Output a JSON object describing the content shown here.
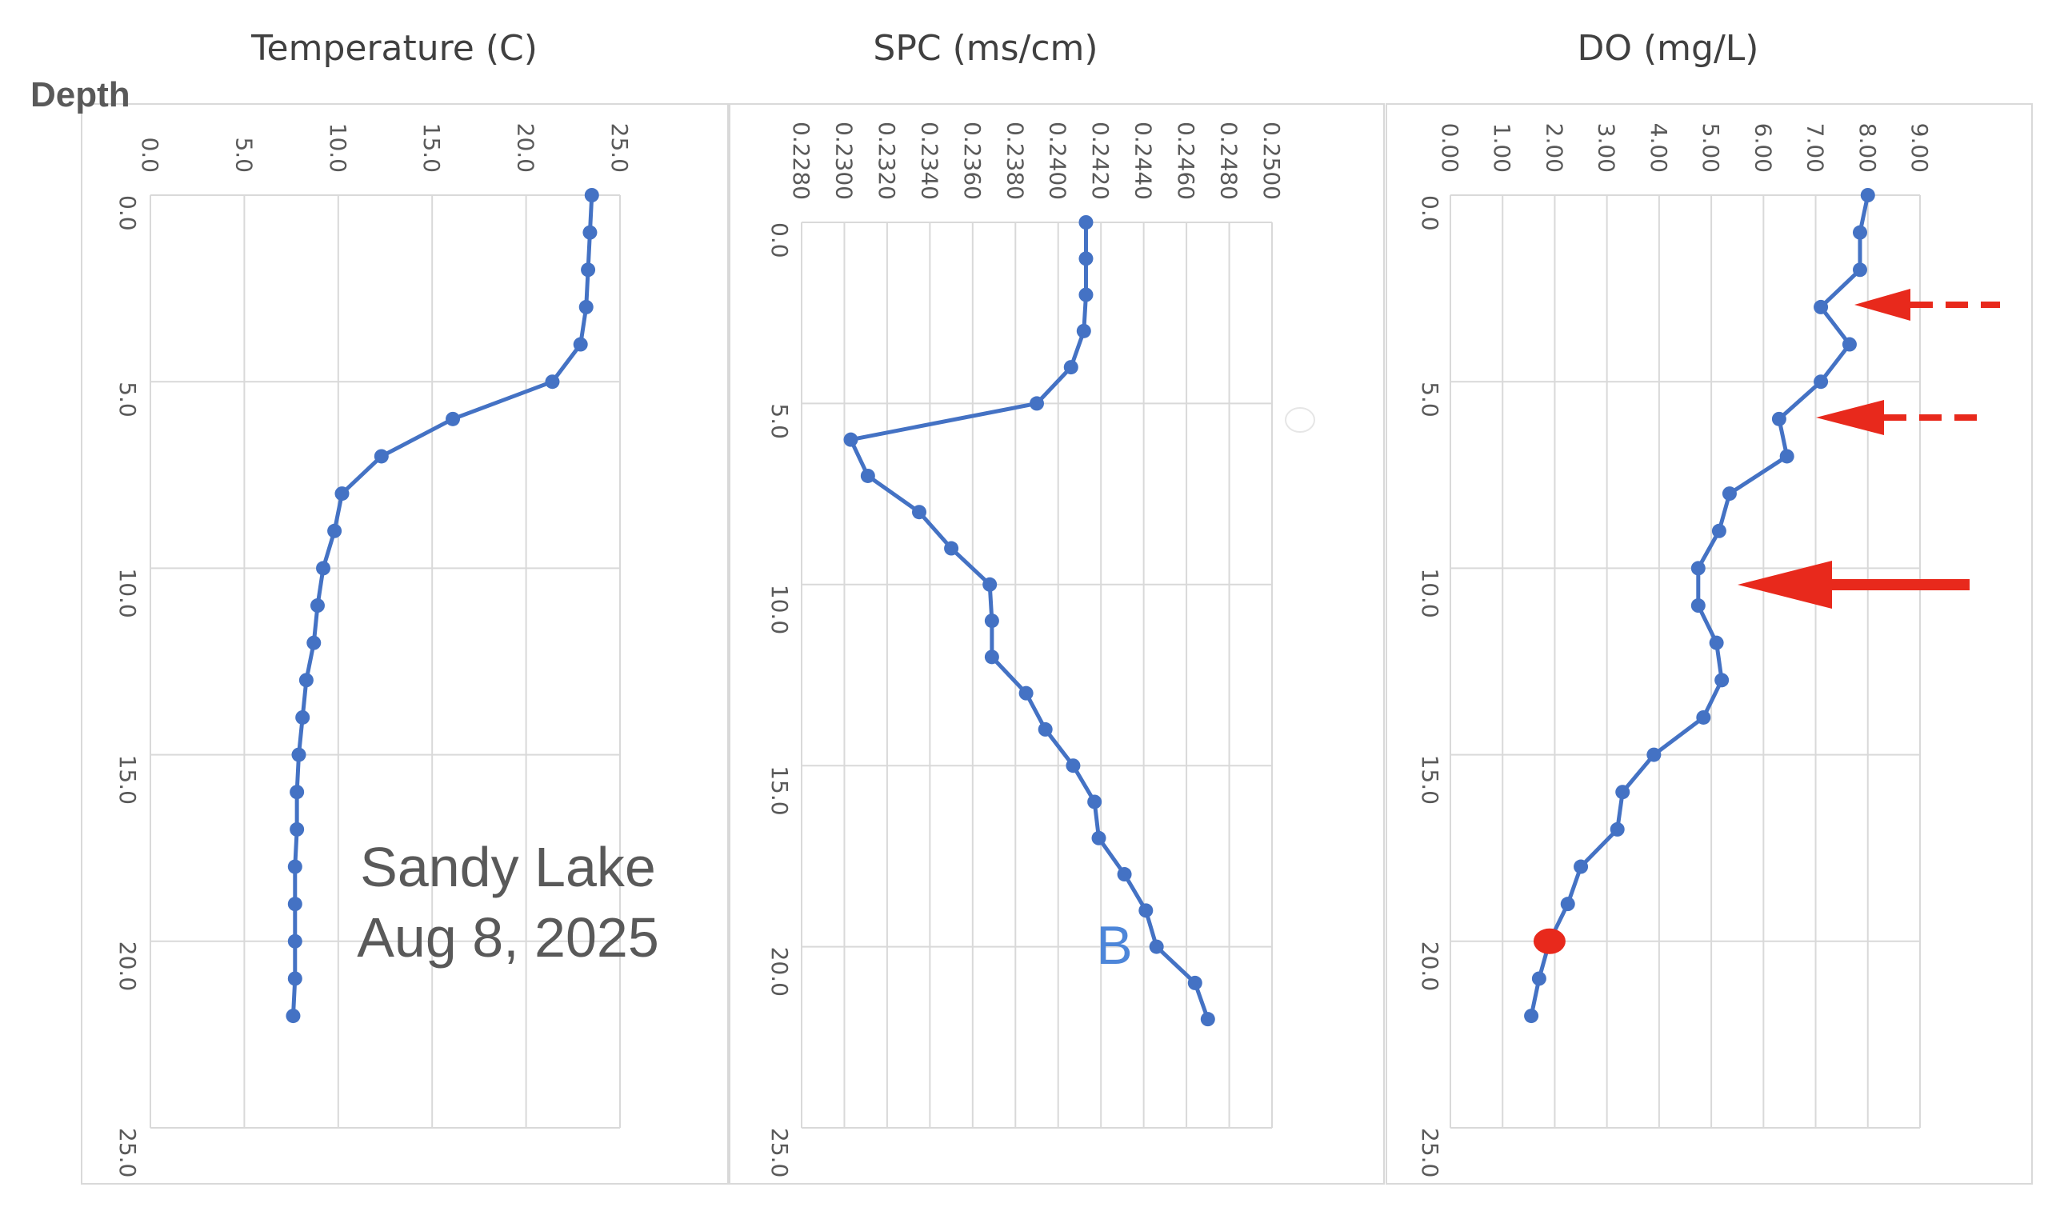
{
  "figure": {
    "depth_label": "Depth",
    "site_name": "Sandy Lake",
    "date": "Aug 8, 2025",
    "panel_marker": "B"
  },
  "chart_data": [
    {
      "type": "line",
      "title": "Temperature (C)",
      "xlabel": "",
      "ylabel": "Depth",
      "orientation": "depth profile, value axis at top, depth increasing downward",
      "xlim": [
        0,
        25
      ],
      "x_ticks": [
        "0.0",
        "5.0",
        "10.0",
        "15.0",
        "20.0",
        "25.0"
      ],
      "ylim": [
        0,
        25
      ],
      "y_ticks": [
        "0.0",
        "5.0",
        "10.0",
        "15.0",
        "20.0",
        "25.0"
      ],
      "grid": true,
      "series": [
        {
          "color": "#4472c4",
          "depth": [
            0,
            1,
            2,
            3,
            4,
            5,
            6,
            7,
            8,
            9,
            10,
            11,
            12,
            13,
            14,
            15,
            16,
            17,
            18,
            19,
            20,
            21,
            22
          ],
          "values": [
            23.5,
            23.4,
            23.3,
            23.2,
            22.9,
            21.4,
            16.1,
            12.3,
            10.2,
            9.8,
            9.2,
            8.9,
            8.7,
            8.3,
            8.1,
            7.9,
            7.8,
            7.8,
            7.7,
            7.7,
            7.7,
            7.7,
            7.6
          ]
        }
      ]
    },
    {
      "type": "line",
      "title": "SPC (ms/cm)",
      "xlabel": "",
      "ylabel": "",
      "orientation": "depth profile, value axis at top, depth increasing downward",
      "xlim": [
        0.228,
        0.25
      ],
      "x_ticks": [
        "0.2280",
        "0.2300",
        "0.2320",
        "0.2340",
        "0.2360",
        "0.2380",
        "0.2400",
        "0.2420",
        "0.2440",
        "0.2460",
        "0.2480",
        "0.2500"
      ],
      "ylim": [
        0,
        25
      ],
      "y_ticks": [
        "0.0",
        "5.0",
        "10.0",
        "15.0",
        "20.0",
        "25.0"
      ],
      "grid": true,
      "series": [
        {
          "color": "#4472c4",
          "depth": [
            0,
            1,
            2,
            3,
            4,
            5,
            6,
            7,
            8,
            9,
            10,
            11,
            12,
            13,
            14,
            15,
            16,
            17,
            18,
            19,
            20,
            21,
            22
          ],
          "values": [
            0.2413,
            0.2413,
            0.2413,
            0.2412,
            0.2406,
            0.239,
            0.2303,
            0.2311,
            0.2335,
            0.235,
            0.2368,
            0.2369,
            0.2369,
            0.2385,
            0.2394,
            0.2407,
            0.2417,
            0.2419,
            0.2431,
            0.2441,
            0.2446,
            0.2464,
            0.247
          ]
        }
      ]
    },
    {
      "type": "line",
      "title": "DO (mg/L)",
      "xlabel": "",
      "ylabel": "",
      "orientation": "depth profile, value axis at top, depth increasing downward",
      "xlim": [
        0,
        9
      ],
      "x_ticks": [
        "0.00",
        "1.00",
        "2.00",
        "3.00",
        "4.00",
        "5.00",
        "6.00",
        "7.00",
        "8.00",
        "9.00"
      ],
      "ylim": [
        0,
        25
      ],
      "y_ticks": [
        "0.0",
        "5.0",
        "10.0",
        "15.0",
        "20.0",
        "25.0"
      ],
      "grid": true,
      "series": [
        {
          "color": "#4472c4",
          "depth": [
            0,
            1,
            2,
            3,
            4,
            5,
            6,
            7,
            8,
            9,
            10,
            11,
            12,
            13,
            14,
            15,
            16,
            17,
            18,
            19,
            20,
            21,
            22
          ],
          "values": [
            8.0,
            7.85,
            7.85,
            7.1,
            7.65,
            7.1,
            6.3,
            6.45,
            5.35,
            5.15,
            4.75,
            4.75,
            5.1,
            5.2,
            4.85,
            3.9,
            3.3,
            3.2,
            2.5,
            2.25,
            1.9,
            1.7,
            1.55
          ]
        }
      ],
      "highlight": {
        "depth": 20,
        "value": 1.9,
        "color": "#e8291c"
      },
      "arrows": [
        {
          "depth": 3.0,
          "style": "dashed",
          "color": "#e8291c"
        },
        {
          "depth": 6.0,
          "style": "dashed",
          "color": "#e8291c"
        },
        {
          "depth": 10.5,
          "style": "solid",
          "color": "#e8291c"
        }
      ]
    }
  ]
}
